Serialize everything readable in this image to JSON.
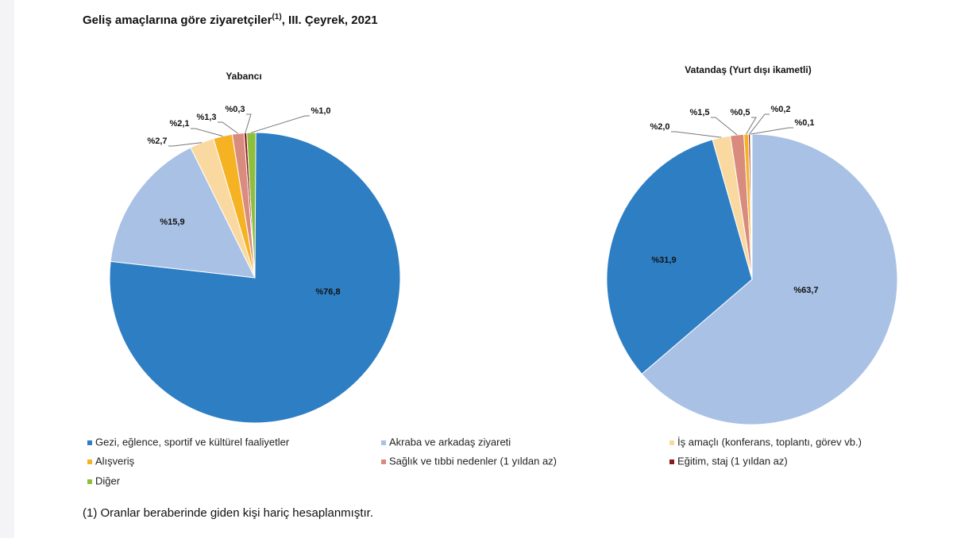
{
  "title": "Geliş amaçlarına göre ziyaretçiler",
  "title_sup": "(1)",
  "title_rest": ", III. Çeyrek, 2021",
  "legend": {
    "labels": [
      "Gezi, eğlence, sportif ve kültürel faaliyetler",
      "Akraba ve arkadaş ziyareti",
      "İş amaçlı (konferans, toplantı, görev vb.)",
      "Alışveriş",
      "Sağlık ve tıbbi nedenler (1 yıldan az)",
      "Eğitim, staj (1 yıldan az)",
      "Diğer"
    ],
    "colors": [
      "#2e7ec4",
      "#a8c1e4",
      "#fad9a0",
      "#f5b323",
      "#d98c7e",
      "#8b1a1a",
      "#8dbf3b"
    ]
  },
  "footnote": "(1) Oranlar beraberinde giden kişi hariç hesaplanmıştır.",
  "chart_data": [
    {
      "type": "pie",
      "subtitle": "Yabancı",
      "values": [
        76.8,
        15.9,
        2.7,
        2.1,
        1.3,
        0.3,
        1.0
      ],
      "value_labels": [
        "%76,8",
        "%15,9",
        "%2,7",
        "%2,1",
        "%1,3",
        "%0,3",
        "%1,0"
      ],
      "colors": [
        "#2e7ec4",
        "#a8c1e4",
        "#fad9a0",
        "#f5b323",
        "#d98c7e",
        "#8b1a1a",
        "#8dbf3b"
      ]
    },
    {
      "type": "pie",
      "subtitle": "Vatandaş (Yurt dışı ikametli)",
      "values": [
        63.7,
        31.9,
        2.0,
        1.5,
        0.5,
        0.2,
        0.1
      ],
      "value_labels": [
        "%63,7",
        "%31,9",
        "%2,0",
        "%1,5",
        "%0,5",
        "%0,2",
        "%0,1"
      ],
      "colors": [
        "#a8c1e4",
        "#2e7ec4",
        "#fad9a0",
        "#d98c7e",
        "#f5b323",
        "#8b1a1a",
        "#8dbf3b"
      ]
    }
  ]
}
